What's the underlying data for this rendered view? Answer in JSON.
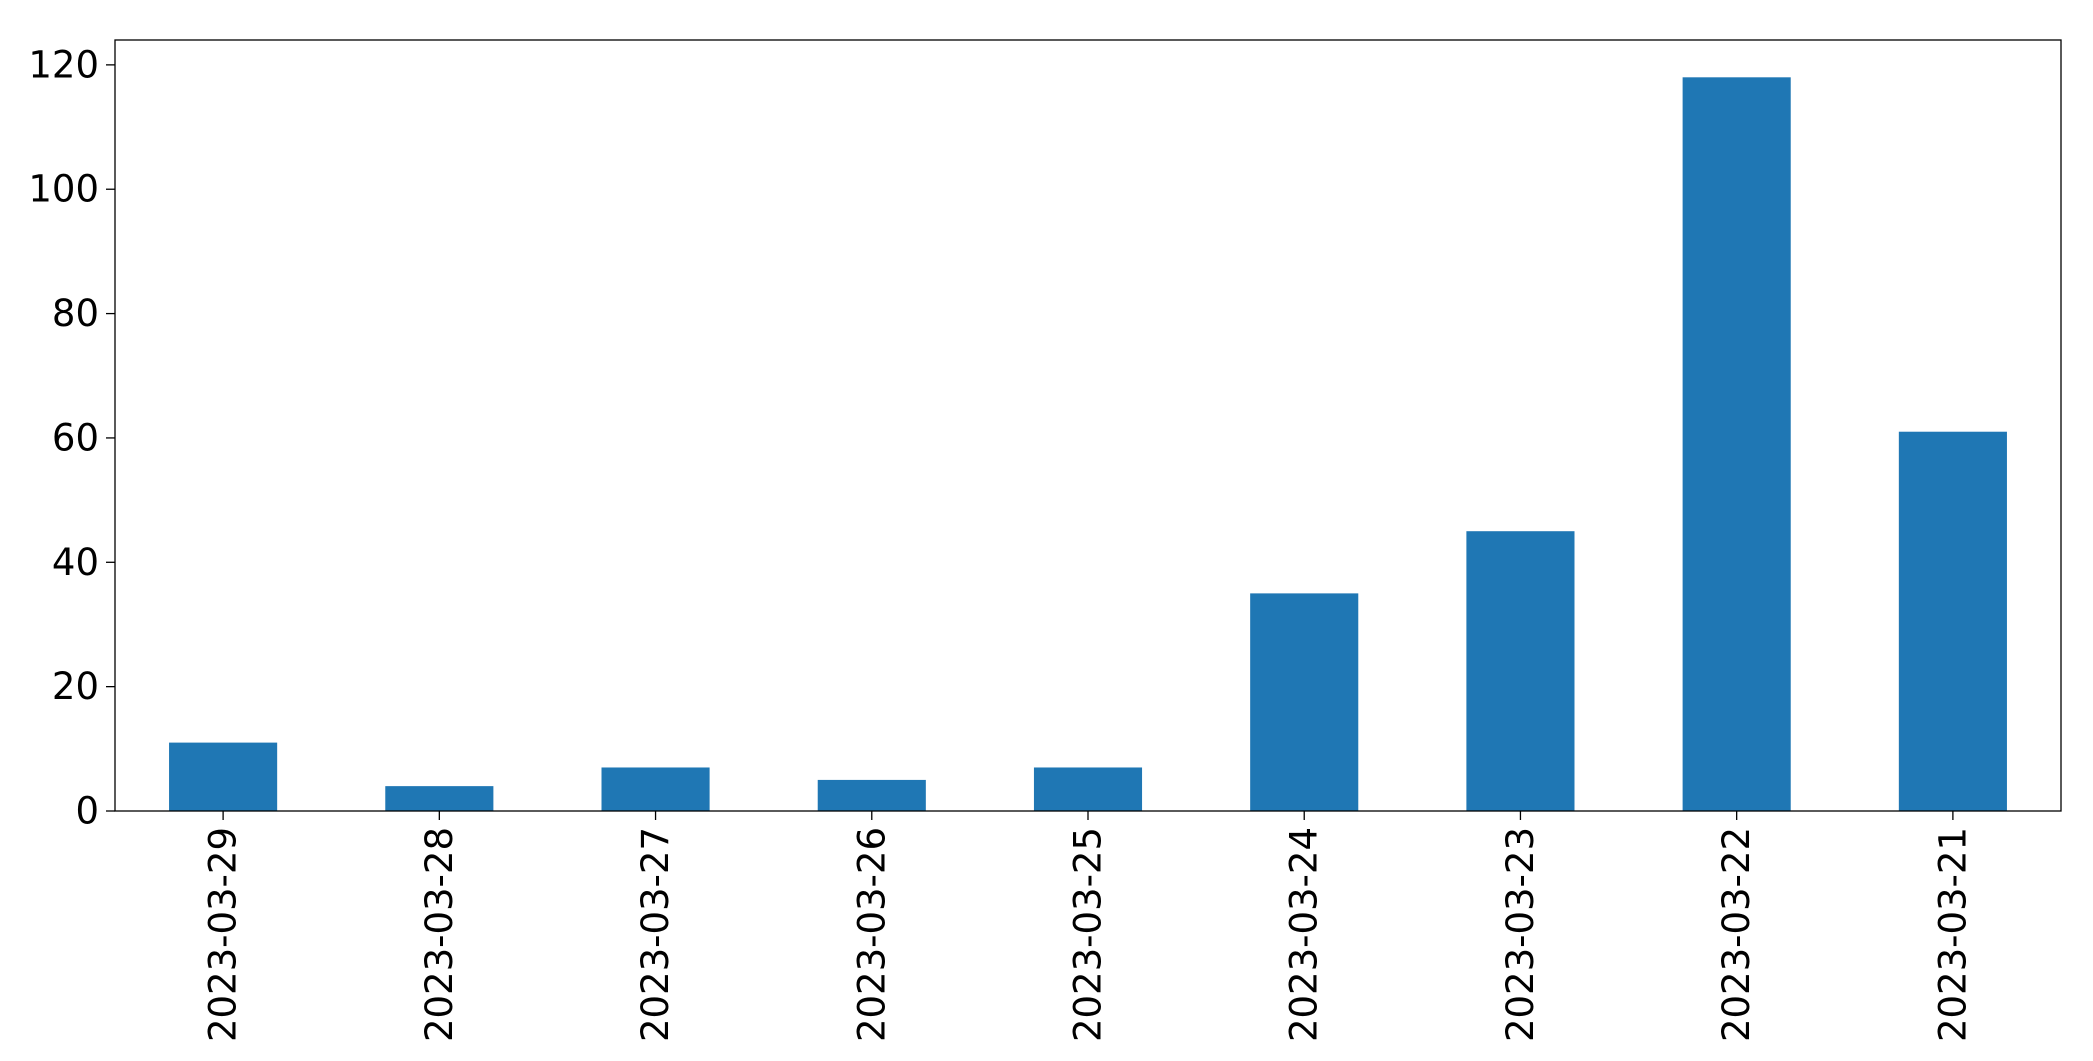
{
  "chart_data": {
    "type": "bar",
    "categories": [
      "2023-03-29",
      "2023-03-28",
      "2023-03-27",
      "2023-03-26",
      "2023-03-25",
      "2023-03-24",
      "2023-03-23",
      "2023-03-22",
      "2023-03-21"
    ],
    "values": [
      11,
      4,
      7,
      5,
      7,
      35,
      45,
      118,
      61
    ],
    "title": "",
    "xlabel": "",
    "ylabel": "",
    "ylim": [
      0,
      124
    ],
    "yticks": [
      0,
      20,
      40,
      60,
      80,
      100,
      120
    ],
    "bar_color": "#1f77b4",
    "grid": false,
    "legend": "none",
    "x_tick_rotation": "vertical"
  }
}
